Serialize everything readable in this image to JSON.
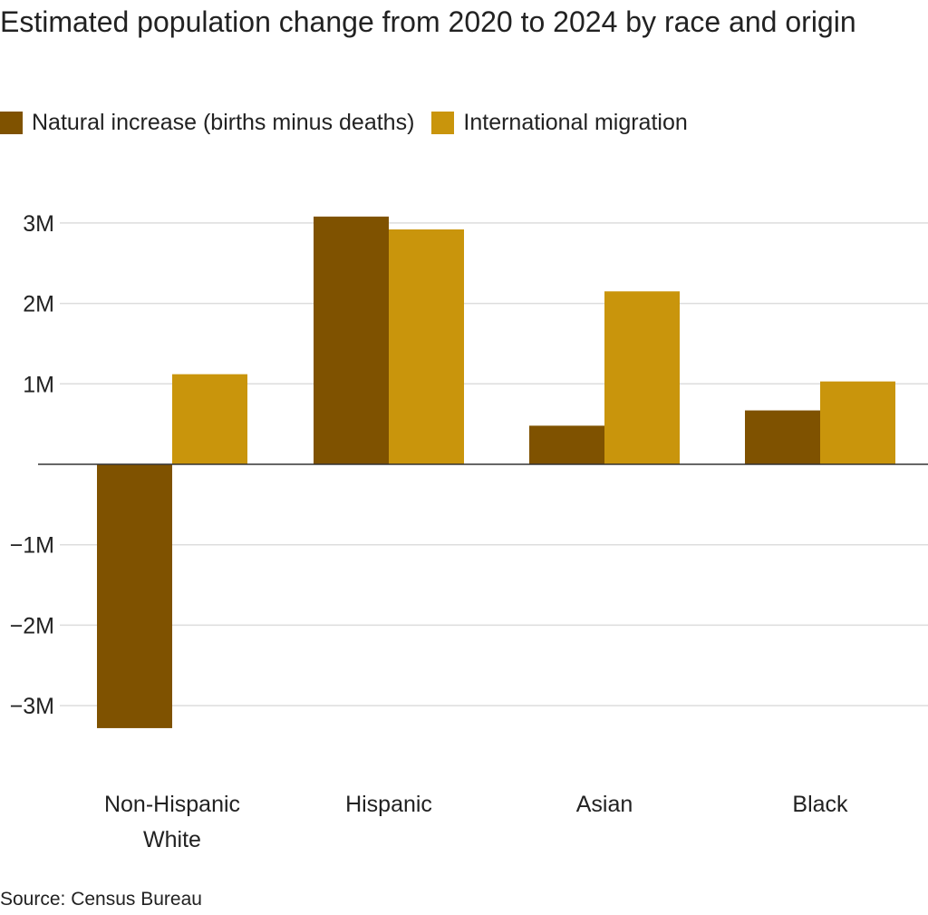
{
  "chart_data": {
    "type": "bar",
    "title": "Estimated population change from 2020 to 2024 by race and origin",
    "categories": [
      "Non-Hispanic White",
      "Hispanic",
      "Asian",
      "Black"
    ],
    "category_lines": [
      [
        "Non-Hispanic",
        "White"
      ],
      [
        "Hispanic"
      ],
      [
        "Asian"
      ],
      [
        "Black"
      ]
    ],
    "series": [
      {
        "name": "Natural increase (births minus deaths)",
        "values": [
          -3.28,
          3.08,
          0.48,
          0.67
        ],
        "color": "#7f5200"
      },
      {
        "name": "International migration",
        "values": [
          1.12,
          2.92,
          2.15,
          1.03
        ],
        "color": "#c9950c"
      }
    ],
    "unit": "millions",
    "ylim": [
      -3.3,
      3.3
    ],
    "yticks": [
      3,
      2,
      1,
      -1,
      -2,
      -3
    ],
    "ytick_labels": [
      "3M",
      "2M",
      "1M",
      "−1M",
      "−2M",
      "−3M"
    ],
    "grid": true,
    "legend_position": "top-left",
    "xlabel": "",
    "ylabel": "",
    "source": "Source: Census Bureau"
  }
}
